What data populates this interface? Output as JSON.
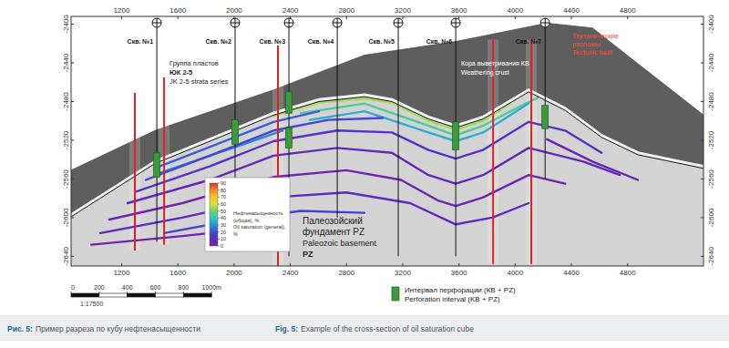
{
  "chart_data": {
    "type": "cross_section",
    "xlim": [
      840,
      5340
    ],
    "ylim": [
      -2392,
      -2650
    ],
    "xticks": [
      1200,
      1600,
      2000,
      2400,
      2800,
      3200,
      3600,
      4000,
      4400,
      4800
    ],
    "yticks": [
      -2400,
      -2440,
      -2480,
      -2520,
      -2560,
      -2600,
      -2640
    ],
    "overburden_top": {
      "x": [
        840,
        1437,
        2280,
        2928,
        3577,
        4226,
        4550,
        4874,
        5340
      ],
      "y": [
        -2551,
        -2510,
        -2468,
        -2432,
        -2418,
        -2399,
        -2404,
        -2441,
        -2494
      ]
    },
    "basement_top": {
      "x": [
        840,
        1437,
        1826,
        2280,
        2604,
        2928,
        3123,
        3383,
        3577,
        3772,
        4096,
        4356,
        4615,
        4874,
        5340
      ],
      "y": [
        -2597,
        -2542,
        -2519,
        -2492,
        -2478,
        -2473,
        -2478,
        -2496,
        -2505,
        -2496,
        -2468,
        -2487,
        -2515,
        -2533,
        -2547
      ]
    },
    "strata": [
      {
        "saturation": 55,
        "x": [
          2280,
          2604,
          2928,
          3123,
          3383,
          3577,
          3772,
          3966
        ],
        "y": [
          -2495,
          -2481,
          -2477,
          -2481,
          -2500,
          -2509,
          -2500,
          -2482
        ]
      },
      {
        "saturation": 45,
        "x": [
          2474,
          2928,
          3383,
          3577,
          3772,
          3966,
          4161
        ],
        "y": [
          -2492,
          -2482,
          -2505,
          -2515,
          -2505,
          -2490,
          -2476
        ]
      },
      {
        "saturation": 35,
        "x": [
          2539,
          2928,
          3383,
          3577,
          3772,
          4096
        ],
        "y": [
          -2499,
          -2490,
          -2512,
          -2521,
          -2512,
          -2482
        ]
      },
      {
        "saturation": 22,
        "x": [
          1437,
          1826,
          2280,
          2604
        ],
        "y": [
          -2549,
          -2527,
          -2501,
          -2490
        ]
      },
      {
        "saturation": 28,
        "x": [
          1470,
          1891,
          2345
        ],
        "y": [
          -2554,
          -2533,
          -2510
        ]
      },
      {
        "saturation": 18,
        "x": [
          1372,
          1826,
          2280,
          2669,
          3058
        ],
        "y": [
          -2561,
          -2536,
          -2510,
          -2499,
          -2497
        ]
      },
      {
        "saturation": 12,
        "x": [
          1307,
          1826,
          2280,
          2734,
          3123,
          3383,
          3577,
          3772,
          4096,
          4356,
          4615
        ],
        "y": [
          -2573,
          -2547,
          -2521,
          -2510,
          -2512,
          -2530,
          -2539,
          -2530,
          -2501,
          -2510,
          -2533
        ]
      },
      {
        "saturation": 8,
        "x": [
          1242,
          1826,
          2280,
          2734,
          3123,
          3383,
          3577,
          3772,
          4096,
          4485,
          4745
        ],
        "y": [
          -2585,
          -2561,
          -2536,
          -2528,
          -2533,
          -2556,
          -2565,
          -2556,
          -2528,
          -2542,
          -2556
        ]
      },
      {
        "saturation": 4,
        "x": [
          1112,
          1631,
          2280,
          2799,
          3188,
          3447,
          3577,
          3772,
          4096,
          4356
        ],
        "y": [
          -2602,
          -2585,
          -2558,
          -2551,
          -2561,
          -2582,
          -2588,
          -2579,
          -2556,
          -2565
        ]
      },
      {
        "saturation": 10,
        "x": [
          1048,
          1631,
          2280,
          2799,
          3253,
          3577,
          3837,
          4096
        ],
        "y": [
          -2616,
          -2600,
          -2579,
          -2574,
          -2585,
          -2607,
          -2600,
          -2585
        ]
      },
      {
        "saturation": 16,
        "x": [
          1502,
          2020,
          2474,
          2928
        ],
        "y": [
          -2616,
          -2602,
          -2593,
          -2595
        ]
      },
      {
        "saturation": 3,
        "x": [
          983,
          1631,
          2150
        ],
        "y": [
          -2628,
          -2619,
          -2611
        ]
      },
      {
        "saturation": 6,
        "x": [
          4226,
          4550,
          4874
        ],
        "y": [
          -2519,
          -2542,
          -2561
        ]
      }
    ],
    "wells": [
      {
        "label": "Скв. №1",
        "x": 1450,
        "bottom": -2625,
        "perforations": [
          {
            "top": -2533,
            "bottom": -2558
          }
        ]
      },
      {
        "label": "Скв. №2",
        "x": 2007,
        "bottom": -2635,
        "perforations": [
          {
            "top": -2499,
            "bottom": -2524
          }
        ]
      },
      {
        "label": "Скв. №3",
        "x": 2390,
        "bottom": -2640,
        "perforations": [
          {
            "top": -2470,
            "bottom": -2492
          },
          {
            "top": -2507,
            "bottom": -2528
          }
        ]
      },
      {
        "label": "Скв. №4",
        "x": 2734,
        "bottom": -2600,
        "perforations": []
      },
      {
        "label": "Скв. №5",
        "x": 3168,
        "bottom": -2640,
        "perforations": []
      },
      {
        "label": "Скв. №6",
        "x": 3577,
        "bottom": -2640,
        "perforations": [
          {
            "top": -2501,
            "bottom": -2530
          }
        ]
      },
      {
        "label": "Скв. №7",
        "x": 4213,
        "bottom": -2560,
        "perforations": [
          {
            "top": -2484,
            "bottom": -2508
          }
        ]
      }
    ],
    "faults": [
      {
        "x": 1294,
        "top": -2471,
        "bottom": -2634
      },
      {
        "x": 1502,
        "top": -2455,
        "bottom": -2628
      },
      {
        "x": 2312,
        "top": -2422,
        "bottom": -2650
      },
      {
        "x": 3843,
        "top": -2416,
        "bottom": -2648
      },
      {
        "x": 4115,
        "top": -2416,
        "bottom": -2648
      }
    ],
    "colorbar": {
      "title": [
        "Нефтенасыщенность",
        "(общая), %",
        "Oil saturation (general),",
        "%"
      ],
      "range": [
        0,
        90
      ],
      "ticks": [
        0,
        10,
        20,
        30,
        40,
        50,
        60,
        70,
        80,
        90
      ],
      "colors": [
        "#7a1fa2",
        "#5b2bbf",
        "#3b4fd8",
        "#2f8fe0",
        "#2cc7c7",
        "#6fd36a",
        "#d6e23a",
        "#f5c22a",
        "#f08a24",
        "#e0302a"
      ]
    },
    "scale_bar": {
      "ticks": [
        0,
        200,
        400,
        600,
        800,
        {
          "value": 1000,
          "label": "1000m"
        }
      ],
      "ratio": "1:17500"
    },
    "annotations": {
      "strata_group": [
        "Группа пластов",
        "ЮК 2-5",
        "JK 2-5 strata series"
      ],
      "weathering_crust": [
        "Кора выветривания КВ",
        "Weathering crust"
      ],
      "tectonic_faults": [
        "Тектонические",
        "разломы",
        "Tectonic fault"
      ],
      "basement": [
        "Палеозойский",
        "фундамент PZ",
        "Paleozoic basement",
        "PZ"
      ]
    },
    "perforation_legend": [
      "Интервал перфорации (КВ + PZ)",
      "Perforation interval (KB + PZ)"
    ],
    "caption": {
      "label_ru": "Рис. 5:",
      "text_ru": "Пример разреза по кубу нефтенасыщенности",
      "label_en": "Fig. 5:",
      "text_en": "Example of the cross-section of oil saturation cube"
    }
  }
}
